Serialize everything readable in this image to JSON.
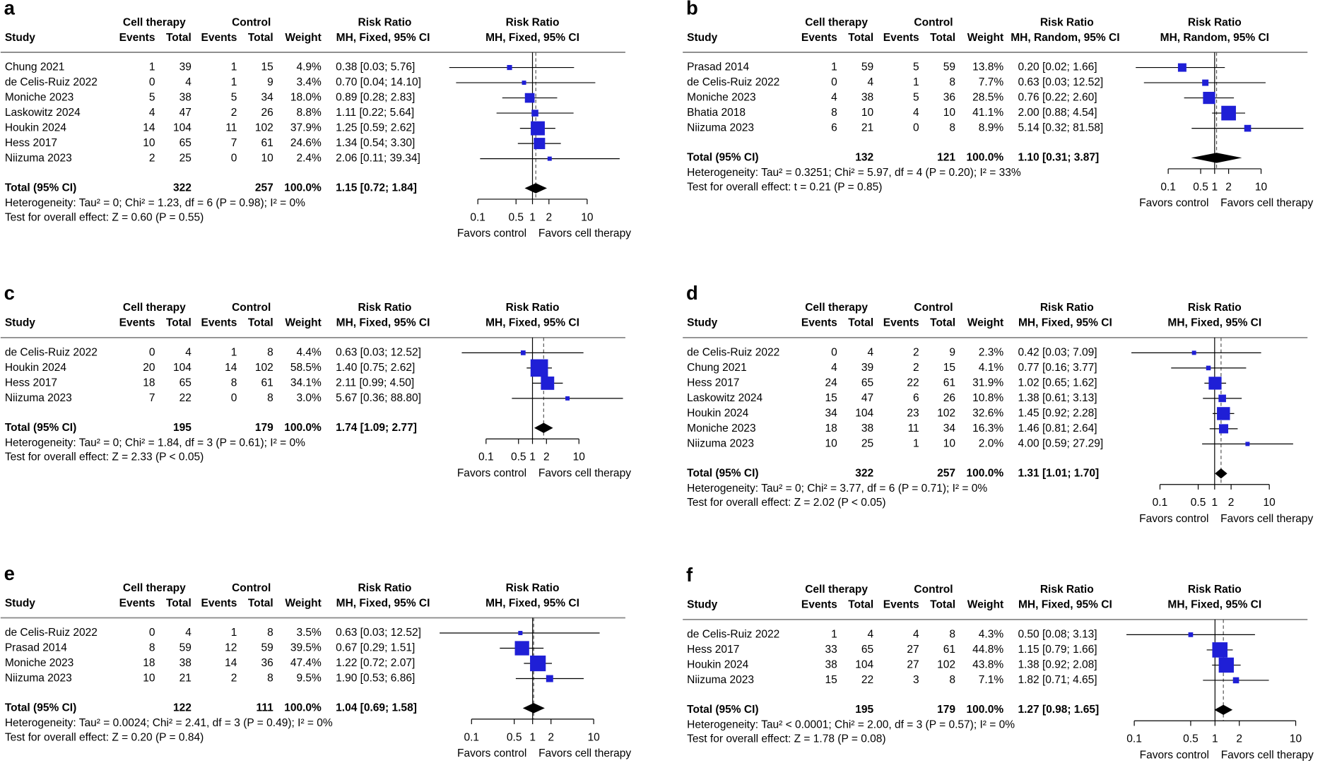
{
  "chart_data": [
    {
      "type": "forest",
      "panel": "a",
      "groups": [
        "Cell therapy",
        "Control",
        "Risk Ratio",
        "Risk Ratio"
      ],
      "columns": [
        "Study",
        "Events",
        "Total",
        "Events",
        "Total",
        "Weight",
        "MH, Fixed, 95% CI",
        "MH, Fixed, 95% CI"
      ],
      "studies": [
        {
          "study": "Chung 2021",
          "events_t": 1,
          "total_t": 39,
          "events_c": 1,
          "total_c": 15,
          "weight": 4.9,
          "weight_label": "4.9%",
          "rr": 0.38,
          "lo": 0.03,
          "hi": 5.76,
          "rr_label": "0.38 [0.03; 5.76]"
        },
        {
          "study": "de Celis-Ruiz 2022",
          "events_t": 0,
          "total_t": 4,
          "events_c": 1,
          "total_c": 9,
          "weight": 3.4,
          "weight_label": "3.4%",
          "rr": 0.7,
          "lo": 0.04,
          "hi": 14.1,
          "rr_label": "0.70 [0.04; 14.10]"
        },
        {
          "study": "Moniche 2023",
          "events_t": 5,
          "total_t": 38,
          "events_c": 5,
          "total_c": 34,
          "weight": 18.0,
          "weight_label": "18.0%",
          "rr": 0.89,
          "lo": 0.28,
          "hi": 2.83,
          "rr_label": "0.89 [0.28; 2.83]"
        },
        {
          "study": "Laskowitz 2024",
          "events_t": 4,
          "total_t": 47,
          "events_c": 2,
          "total_c": 26,
          "weight": 8.8,
          "weight_label": "8.8%",
          "rr": 1.11,
          "lo": 0.22,
          "hi": 5.64,
          "rr_label": "1.11 [0.22; 5.64]"
        },
        {
          "study": "Houkin 2024",
          "events_t": 14,
          "total_t": 104,
          "events_c": 11,
          "total_c": 102,
          "weight": 37.9,
          "weight_label": "37.9%",
          "rr": 1.25,
          "lo": 0.59,
          "hi": 2.62,
          "rr_label": "1.25 [0.59; 2.62]"
        },
        {
          "study": "Hess 2017",
          "events_t": 10,
          "total_t": 65,
          "events_c": 7,
          "total_c": 61,
          "weight": 24.6,
          "weight_label": "24.6%",
          "rr": 1.34,
          "lo": 0.54,
          "hi": 3.3,
          "rr_label": "1.34 [0.54; 3.30]"
        },
        {
          "study": "Niizuma 2023",
          "events_t": 2,
          "total_t": 25,
          "events_c": 0,
          "total_c": 10,
          "weight": 2.4,
          "weight_label": "2.4%",
          "rr": 2.06,
          "lo": 0.11,
          "hi": 39.34,
          "rr_label": "2.06 [0.11; 39.34]"
        }
      ],
      "total": {
        "label": "Total (95% CI)",
        "total_t": 322,
        "total_c": 257,
        "weight": 100,
        "weight_label": "100.0%",
        "rr": 1.15,
        "lo": 0.72,
        "hi": 1.84,
        "rr_label": "1.15 [0.72; 1.84]"
      },
      "heterogeneity": "Heterogeneity: Tau² = 0; Chi² = 1.23, df = 6 (P = 0.98); I² = 0%",
      "overall_effect": "Test for overall effect: Z = 0.60 (P = 0.55)",
      "xlim": [
        0.02,
        50
      ],
      "xticks": [
        0.1,
        0.5,
        1,
        2,
        10
      ],
      "log_scale": true,
      "color": "#1f1fd6",
      "favors": [
        "Favors control",
        "Favors cell therapy"
      ]
    },
    {
      "type": "forest",
      "panel": "b",
      "groups": [
        "Cell therapy",
        "Control",
        "Risk Ratio",
        "Risk Ratio"
      ],
      "columns": [
        "Study",
        "Events",
        "Total",
        "Events",
        "Total",
        "Weight",
        "MH, Random, 95% CI",
        "MH, Random, 95% CI"
      ],
      "studies": [
        {
          "study": "Prasad 2014",
          "events_t": 1,
          "total_t": 59,
          "events_c": 5,
          "total_c": 59,
          "weight": 13.8,
          "weight_label": "13.8%",
          "rr": 0.2,
          "lo": 0.02,
          "hi": 1.66,
          "rr_label": "0.20 [0.02; 1.66]"
        },
        {
          "study": "de Celis-Ruiz 2022",
          "events_t": 0,
          "total_t": 4,
          "events_c": 1,
          "total_c": 8,
          "weight": 7.7,
          "weight_label": "7.7%",
          "rr": 0.63,
          "lo": 0.03,
          "hi": 12.52,
          "rr_label": "0.63 [0.03; 12.52]"
        },
        {
          "study": "Moniche 2023",
          "events_t": 4,
          "total_t": 38,
          "events_c": 5,
          "total_c": 36,
          "weight": 28.5,
          "weight_label": "28.5%",
          "rr": 0.76,
          "lo": 0.22,
          "hi": 2.6,
          "rr_label": "0.76 [0.22; 2.60]"
        },
        {
          "study": "Bhatia 2018",
          "events_t": 8,
          "total_t": 10,
          "events_c": 4,
          "total_c": 10,
          "weight": 41.1,
          "weight_label": "41.1%",
          "rr": 2.0,
          "lo": 0.88,
          "hi": 4.54,
          "rr_label": "2.00 [0.88; 4.54]"
        },
        {
          "study": "Niizuma 2023",
          "events_t": 6,
          "total_t": 21,
          "events_c": 0,
          "total_c": 8,
          "weight": 8.9,
          "weight_label": "8.9%",
          "rr": 5.14,
          "lo": 0.32,
          "hi": 81.58,
          "rr_label": "5.14 [0.32; 81.58]"
        }
      ],
      "total": {
        "label": "Total (95% CI)",
        "total_t": 132,
        "total_c": 121,
        "weight": 100,
        "weight_label": "100.0%",
        "rr": 1.1,
        "lo": 0.31,
        "hi": 3.87,
        "rr_label": "1.10 [0.31; 3.87]"
      },
      "heterogeneity": "Heterogeneity: Tau² = 0.3251; Chi² = 5.97, df = 4 (P = 0.20); I² = 33%",
      "overall_effect": "Test for overall effect: t = 0.21 (P = 0.85)",
      "xlim": [
        0.01,
        100
      ],
      "xticks": [
        0.1,
        0.5,
        1,
        2,
        10
      ],
      "log_scale": true,
      "color": "#1f1fd6",
      "favors": [
        "Favors control",
        "Favors cell therapy"
      ]
    },
    {
      "type": "forest",
      "panel": "c",
      "groups": [
        "Cell therapy",
        "Control",
        "Risk Ratio",
        "Risk Ratio"
      ],
      "columns": [
        "Study",
        "Events",
        "Total",
        "Events",
        "Total",
        "Weight",
        "MH, Fixed, 95% CI",
        "MH, Fixed, 95% CI"
      ],
      "studies": [
        {
          "study": "de Celis-Ruiz 2022",
          "events_t": 0,
          "total_t": 4,
          "events_c": 1,
          "total_c": 8,
          "weight": 4.4,
          "weight_label": "4.4%",
          "rr": 0.63,
          "lo": 0.03,
          "hi": 12.52,
          "rr_label": "0.63 [0.03; 12.52]"
        },
        {
          "study": "Houkin 2024",
          "events_t": 20,
          "total_t": 104,
          "events_c": 14,
          "total_c": 102,
          "weight": 58.5,
          "weight_label": "58.5%",
          "rr": 1.4,
          "lo": 0.75,
          "hi": 2.62,
          "rr_label": "1.40 [0.75; 2.62]"
        },
        {
          "study": "Hess 2017",
          "events_t": 18,
          "total_t": 65,
          "events_c": 8,
          "total_c": 61,
          "weight": 34.1,
          "weight_label": "34.1%",
          "rr": 2.11,
          "lo": 0.99,
          "hi": 4.5,
          "rr_label": "2.11 [0.99; 4.50]"
        },
        {
          "study": "Niizuma 2023",
          "events_t": 7,
          "total_t": 22,
          "events_c": 0,
          "total_c": 8,
          "weight": 3.0,
          "weight_label": "3.0%",
          "rr": 5.67,
          "lo": 0.36,
          "hi": 88.8,
          "rr_label": "5.67 [0.36; 88.80]"
        }
      ],
      "total": {
        "label": "Total (95% CI)",
        "total_t": 195,
        "total_c": 179,
        "weight": 100,
        "weight_label": "100.0%",
        "rr": 1.74,
        "lo": 1.09,
        "hi": 2.77,
        "rr_label": "1.74 [1.09; 2.77]"
      },
      "heterogeneity": "Heterogeneity: Tau² = 0; Chi² = 1.84, df = 3 (P = 0.61); I² = 0%",
      "overall_effect": "Test for overall effect: Z = 2.33 (P < 0.05)",
      "xlim": [
        0.01,
        100
      ],
      "xticks": [
        0.1,
        0.5,
        1,
        2,
        10
      ],
      "log_scale": true,
      "color": "#1f1fd6",
      "favors": [
        "Favors control",
        "Favors cell therapy"
      ]
    },
    {
      "type": "forest",
      "panel": "d",
      "groups": [
        "Cell therapy",
        "Control",
        "Risk Ratio",
        "Risk Ratio"
      ],
      "columns": [
        "Study",
        "Events",
        "Total",
        "Events",
        "Total",
        "Weight",
        "MH, Fixed, 95% CI",
        "MH, Fixed, 95% CI"
      ],
      "studies": [
        {
          "study": "de Celis-Ruiz 2022",
          "events_t": 0,
          "total_t": 4,
          "events_c": 2,
          "total_c": 9,
          "weight": 2.3,
          "weight_label": "2.3%",
          "rr": 0.42,
          "lo": 0.03,
          "hi": 7.09,
          "rr_label": "0.42 [0.03; 7.09]"
        },
        {
          "study": "Chung 2021",
          "events_t": 4,
          "total_t": 39,
          "events_c": 2,
          "total_c": 15,
          "weight": 4.1,
          "weight_label": "4.1%",
          "rr": 0.77,
          "lo": 0.16,
          "hi": 3.77,
          "rr_label": "0.77 [0.16; 3.77]"
        },
        {
          "study": "Hess 2017",
          "events_t": 24,
          "total_t": 65,
          "events_c": 22,
          "total_c": 61,
          "weight": 31.9,
          "weight_label": "31.9%",
          "rr": 1.02,
          "lo": 0.65,
          "hi": 1.62,
          "rr_label": "1.02 [0.65; 1.62]"
        },
        {
          "study": "Laskowitz 2024",
          "events_t": 15,
          "total_t": 47,
          "events_c": 6,
          "total_c": 26,
          "weight": 10.8,
          "weight_label": "10.8%",
          "rr": 1.38,
          "lo": 0.61,
          "hi": 3.13,
          "rr_label": "1.38 [0.61; 3.13]"
        },
        {
          "study": "Houkin 2024",
          "events_t": 34,
          "total_t": 104,
          "events_c": 23,
          "total_c": 102,
          "weight": 32.6,
          "weight_label": "32.6%",
          "rr": 1.45,
          "lo": 0.92,
          "hi": 2.28,
          "rr_label": "1.45 [0.92; 2.28]"
        },
        {
          "study": "Moniche 2023",
          "events_t": 18,
          "total_t": 38,
          "events_c": 11,
          "total_c": 34,
          "weight": 16.3,
          "weight_label": "16.3%",
          "rr": 1.46,
          "lo": 0.81,
          "hi": 2.64,
          "rr_label": "1.46 [0.81; 2.64]"
        },
        {
          "study": "Niizuma 2023",
          "events_t": 10,
          "total_t": 25,
          "events_c": 1,
          "total_c": 10,
          "weight": 2.0,
          "weight_label": "2.0%",
          "rr": 4.0,
          "lo": 0.59,
          "hi": 27.29,
          "rr_label": "4.00 [0.59; 27.29]"
        }
      ],
      "total": {
        "label": "Total (95% CI)",
        "total_t": 322,
        "total_c": 257,
        "weight": 100,
        "weight_label": "100.0%",
        "rr": 1.31,
        "lo": 1.01,
        "hi": 1.7,
        "rr_label": "1.31 [1.01; 1.70]"
      },
      "heterogeneity": "Heterogeneity: Tau² = 0; Chi² = 3.77, df = 6 (P = 0.71); I² = 0%",
      "overall_effect": "Test for overall effect: Z = 2.02 (P < 0.05)",
      "xlim": [
        0.02,
        50
      ],
      "xticks": [
        0.1,
        0.5,
        1,
        2,
        10
      ],
      "log_scale": true,
      "color": "#1f1fd6",
      "favors": [
        "Favors control",
        "Favors cell therapy"
      ]
    },
    {
      "type": "forest",
      "panel": "e",
      "groups": [
        "Cell therapy",
        "Control",
        "Risk Ratio",
        "Risk Ratio"
      ],
      "columns": [
        "Study",
        "Events",
        "Total",
        "Events",
        "Total",
        "Weight",
        "MH, Fixed, 95% CI",
        "MH, Fixed, 95% CI"
      ],
      "studies": [
        {
          "study": "de Celis-Ruiz 2022",
          "events_t": 0,
          "total_t": 4,
          "events_c": 1,
          "total_c": 8,
          "weight": 3.5,
          "weight_label": "3.5%",
          "rr": 0.63,
          "lo": 0.03,
          "hi": 12.52,
          "rr_label": "0.63 [0.03; 12.52]"
        },
        {
          "study": "Prasad 2014",
          "events_t": 8,
          "total_t": 59,
          "events_c": 12,
          "total_c": 59,
          "weight": 39.5,
          "weight_label": "39.5%",
          "rr": 0.67,
          "lo": 0.29,
          "hi": 1.51,
          "rr_label": "0.67 [0.29; 1.51]"
        },
        {
          "study": "Moniche 2023",
          "events_t": 18,
          "total_t": 38,
          "events_c": 14,
          "total_c": 36,
          "weight": 47.4,
          "weight_label": "47.4%",
          "rr": 1.22,
          "lo": 0.72,
          "hi": 2.07,
          "rr_label": "1.22 [0.72; 2.07]"
        },
        {
          "study": "Niizuma 2023",
          "events_t": 10,
          "total_t": 21,
          "events_c": 2,
          "total_c": 8,
          "weight": 9.5,
          "weight_label": "9.5%",
          "rr": 1.9,
          "lo": 0.53,
          "hi": 6.86,
          "rr_label": "1.90 [0.53; 6.86]"
        }
      ],
      "total": {
        "label": "Total (95% CI)",
        "total_t": 122,
        "total_c": 111,
        "weight": 100,
        "weight_label": "100.0%",
        "rr": 1.04,
        "lo": 0.69,
        "hi": 1.58,
        "rr_label": "1.04 [0.69; 1.58]"
      },
      "heterogeneity": "Heterogeneity: Tau² = 0.0024; Chi² = 2.41, df = 3 (P = 0.49); I² = 0%",
      "overall_effect": "Test for overall effect: Z = 0.20 (P = 0.84)",
      "xlim": [
        0.03,
        33
      ],
      "xticks": [
        0.1,
        0.5,
        1,
        2,
        10
      ],
      "log_scale": true,
      "color": "#1f1fd6",
      "favors": [
        "Favors control",
        "Favors cell therapy"
      ]
    },
    {
      "type": "forest",
      "panel": "f",
      "groups": [
        "Cell therapy",
        "Control",
        "Risk Ratio",
        "Risk Ratio"
      ],
      "columns": [
        "Study",
        "Events",
        "Total",
        "Events",
        "Total",
        "Weight",
        "MH, Fixed, 95% CI",
        "MH, Fixed, 95% CI"
      ],
      "studies": [
        {
          "study": "de Celis-Ruiz 2022",
          "events_t": 1,
          "total_t": 4,
          "events_c": 4,
          "total_c": 8,
          "weight": 4.3,
          "weight_label": "4.3%",
          "rr": 0.5,
          "lo": 0.08,
          "hi": 3.13,
          "rr_label": "0.50 [0.08; 3.13]"
        },
        {
          "study": "Hess 2017",
          "events_t": 33,
          "total_t": 65,
          "events_c": 27,
          "total_c": 61,
          "weight": 44.8,
          "weight_label": "44.8%",
          "rr": 1.15,
          "lo": 0.79,
          "hi": 1.66,
          "rr_label": "1.15 [0.79; 1.66]"
        },
        {
          "study": "Houkin 2024",
          "events_t": 38,
          "total_t": 104,
          "events_c": 27,
          "total_c": 102,
          "weight": 43.8,
          "weight_label": "43.8%",
          "rr": 1.38,
          "lo": 0.92,
          "hi": 2.08,
          "rr_label": "1.38 [0.92; 2.08]"
        },
        {
          "study": "Niizuma 2023",
          "events_t": 15,
          "total_t": 22,
          "events_c": 3,
          "total_c": 8,
          "weight": 7.1,
          "weight_label": "7.1%",
          "rr": 1.82,
          "lo": 0.71,
          "hi": 4.65,
          "rr_label": "1.82 [0.71; 4.65]"
        }
      ],
      "total": {
        "label": "Total (95% CI)",
        "total_t": 195,
        "total_c": 179,
        "weight": 100,
        "weight_label": "100.0%",
        "rr": 1.27,
        "lo": 0.98,
        "hi": 1.65,
        "rr_label": "1.27 [0.98; 1.65]"
      },
      "heterogeneity": "Heterogeneity: Tau² < 0.0001; Chi² = 2.00, df = 3 (P = 0.57); I² = 0%",
      "overall_effect": "Test for overall effect: Z = 1.78 (P = 0.08)",
      "xlim": [
        0.07,
        14
      ],
      "xticks": [
        0.1,
        0.5,
        1,
        2,
        10
      ],
      "log_scale": true,
      "color": "#1f1fd6",
      "favors": [
        "Favors control",
        "Favors cell therapy"
      ]
    }
  ]
}
